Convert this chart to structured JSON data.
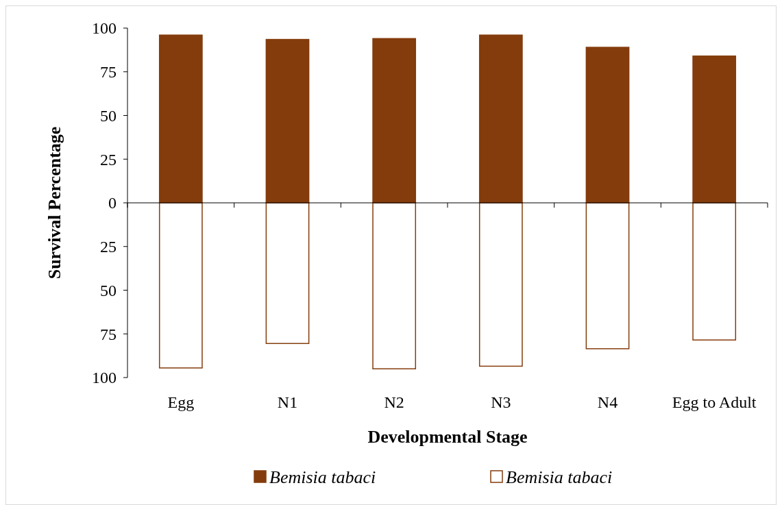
{
  "chart_data": {
    "type": "bar",
    "xlabel": "Developmental Stage",
    "ylabel": "Survival Percentage",
    "categories": [
      "Egg",
      "N1",
      "N2",
      "N3",
      "N4",
      "Egg to Adult"
    ],
    "series": [
      {
        "name": "Bemisia tabaci",
        "color": "#843c0c",
        "values": [
          96,
          93.5,
          94,
          96,
          89,
          84
        ]
      },
      {
        "name": "Bemisia tabaci",
        "color": "#ffffff",
        "values": [
          -94.5,
          -80.5,
          -95,
          -93.5,
          -83.5,
          -78.5
        ]
      }
    ],
    "ylim": [
      -100,
      100
    ],
    "yticks": [
      {
        "value": -100,
        "label": "100"
      },
      {
        "value": -75,
        "label": "75"
      },
      {
        "value": -50,
        "label": "50"
      },
      {
        "value": -25,
        "label": "25"
      },
      0,
      25,
      50,
      75,
      100
    ],
    "stacked": true,
    "legend": "bottom"
  }
}
